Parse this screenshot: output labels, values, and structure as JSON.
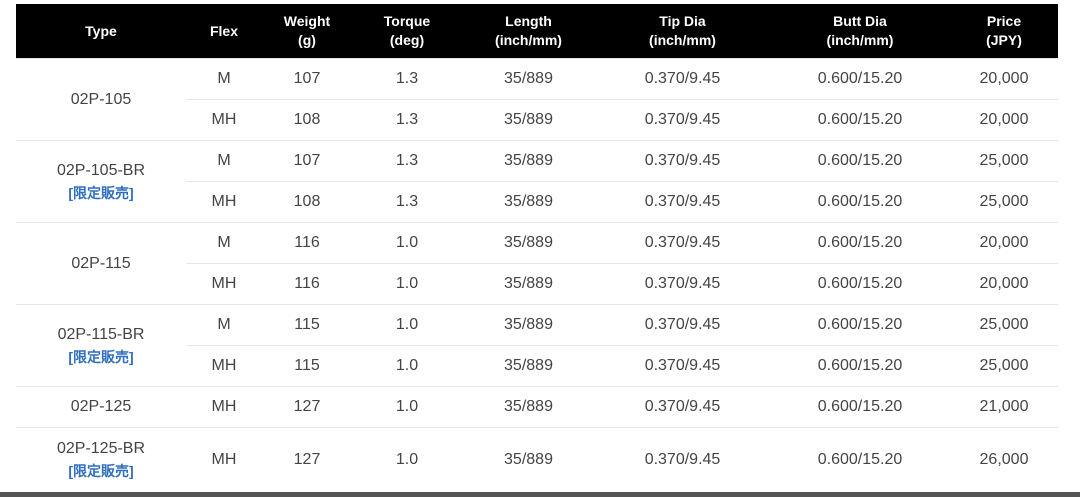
{
  "headers": [
    [
      "Type",
      ""
    ],
    [
      "Flex",
      ""
    ],
    [
      "Weight",
      "(g)"
    ],
    [
      "Torque",
      "(deg)"
    ],
    [
      "Length",
      "(inch/mm)"
    ],
    [
      "Tip Dia",
      "(inch/mm)"
    ],
    [
      "Butt Dia",
      "(inch/mm)"
    ],
    [
      "Price",
      "(JPY)"
    ]
  ],
  "limited_label": "[限定販売]",
  "groups": [
    {
      "type": "02P-105",
      "limited": false,
      "rows": [
        [
          "M",
          "107",
          "1.3",
          "35/889",
          "0.370/9.45",
          "0.600/15.20",
          "20,000"
        ],
        [
          "MH",
          "108",
          "1.3",
          "35/889",
          "0.370/9.45",
          "0.600/15.20",
          "20,000"
        ]
      ]
    },
    {
      "type": "02P-105-BR",
      "limited": true,
      "rows": [
        [
          "M",
          "107",
          "1.3",
          "35/889",
          "0.370/9.45",
          "0.600/15.20",
          "25,000"
        ],
        [
          "MH",
          "108",
          "1.3",
          "35/889",
          "0.370/9.45",
          "0.600/15.20",
          "25,000"
        ]
      ]
    },
    {
      "type": "02P-115",
      "limited": false,
      "rows": [
        [
          "M",
          "116",
          "1.0",
          "35/889",
          "0.370/9.45",
          "0.600/15.20",
          "20,000"
        ],
        [
          "MH",
          "116",
          "1.0",
          "35/889",
          "0.370/9.45",
          "0.600/15.20",
          "20,000"
        ]
      ]
    },
    {
      "type": "02P-115-BR",
      "limited": true,
      "rows": [
        [
          "M",
          "115",
          "1.0",
          "35/889",
          "0.370/9.45",
          "0.600/15.20",
          "25,000"
        ],
        [
          "MH",
          "115",
          "1.0",
          "35/889",
          "0.370/9.45",
          "0.600/15.20",
          "25,000"
        ]
      ]
    },
    {
      "type": "02P-125",
      "limited": false,
      "rows": [
        [
          "MH",
          "127",
          "1.0",
          "35/889",
          "0.370/9.45",
          "0.600/15.20",
          "21,000"
        ]
      ]
    },
    {
      "type": "02P-125-BR",
      "limited": true,
      "rows": [
        [
          "MH",
          "127",
          "1.0",
          "35/889",
          "0.370/9.45",
          "0.600/15.20",
          "26,000"
        ]
      ]
    }
  ]
}
